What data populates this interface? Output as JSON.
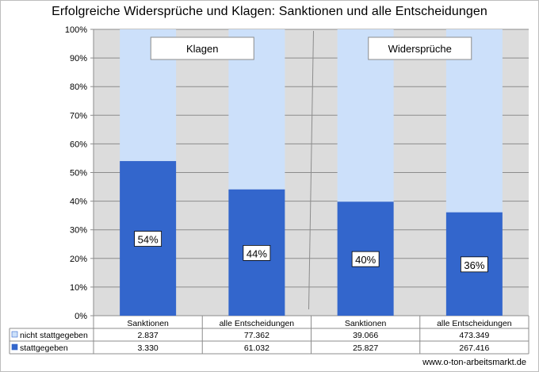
{
  "chart_data": {
    "type": "bar",
    "stacked": true,
    "normalized": true,
    "title": "Erfolgreiche Widersprüche und Klagen: Sanktionen und alle Entscheidungen",
    "categories": [
      "Sanktionen",
      "alle Entscheidungen",
      "Sanktionen",
      "alle Entscheidungen"
    ],
    "groups": [
      {
        "label": "Klagen",
        "categories": [
          0,
          1
        ]
      },
      {
        "label": "Widersprüche",
        "categories": [
          2,
          3
        ]
      }
    ],
    "y_ticks": [
      "0%",
      "10%",
      "20%",
      "30%",
      "40%",
      "50%",
      "60%",
      "70%",
      "80%",
      "90%",
      "100%"
    ],
    "ylim": [
      0,
      100
    ],
    "series": [
      {
        "name": "stattgegeben",
        "color": "#3366CC",
        "values": [
          3330,
          61032,
          25827,
          267416
        ],
        "display": [
          "3.330",
          "61.032",
          "25.827",
          "267.416"
        ]
      },
      {
        "name": "nicht stattgegeben",
        "color": "#CCE0FA",
        "values": [
          2837,
          77362,
          39066,
          473349
        ],
        "display": [
          "2.837",
          "77.362",
          "39.066",
          "473.349"
        ]
      }
    ],
    "data_labels": [
      "54%",
      "44%",
      "40%",
      "36%"
    ],
    "grid": true,
    "legend": "data-table-left"
  },
  "credit": "www.o-ton-arbeitsmarkt.de"
}
